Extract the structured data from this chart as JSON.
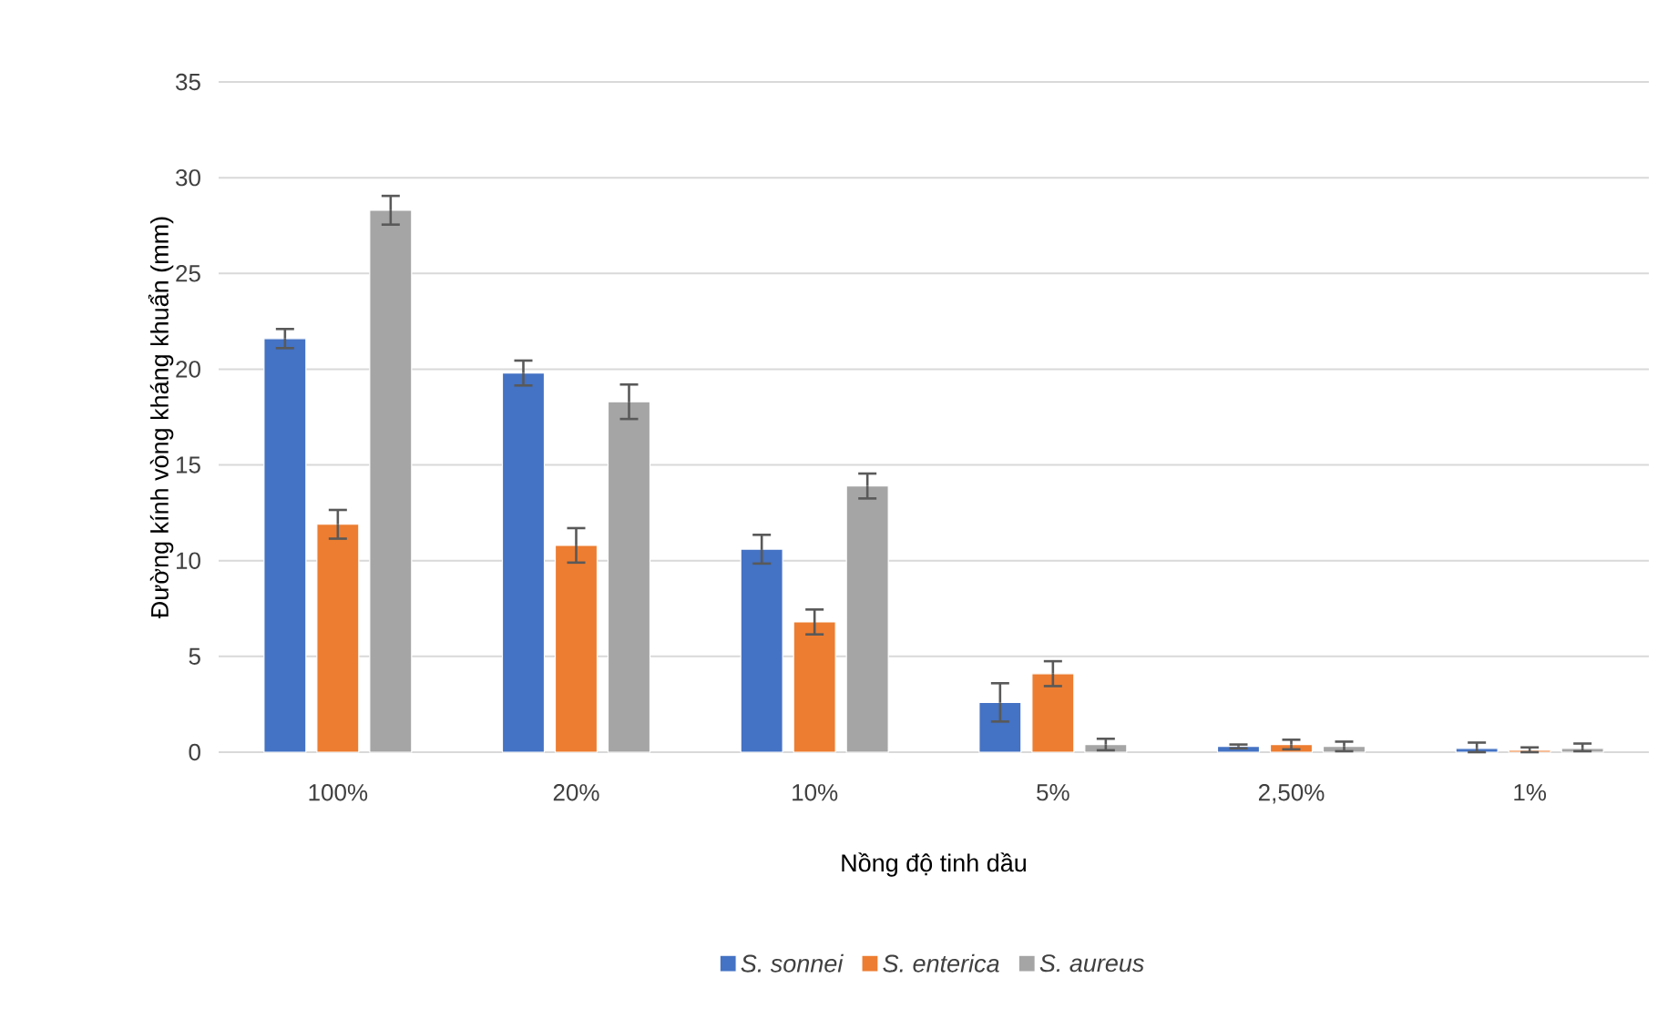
{
  "chart_data": {
    "type": "bar",
    "xlabel": "Nồng độ tinh dầu",
    "ylabel": "Đường kính vòng kháng khuẩn (mm)",
    "categories": [
      "100%",
      "20%",
      "10%",
      "5%",
      "2,50%",
      "1%"
    ],
    "ylim": [
      0,
      35
    ],
    "yticks": [
      0,
      5,
      10,
      15,
      20,
      25,
      30,
      35
    ],
    "grid": "y",
    "legend": "bottom",
    "series": [
      {
        "name": "S. sonnei",
        "color": "#4472c4",
        "values": [
          21.6,
          19.8,
          10.6,
          2.6,
          0.3,
          0.2
        ],
        "errors": [
          0.5,
          0.65,
          0.75,
          1.0,
          0.1,
          [
            0.2,
            0.3
          ]
        ]
      },
      {
        "name": "S. enterica",
        "color": "#ed7d31",
        "values": [
          11.9,
          10.8,
          6.8,
          4.1,
          0.4,
          0.1
        ],
        "errors": [
          0.75,
          0.9,
          0.65,
          0.65,
          0.25,
          [
            0.1,
            0.15
          ]
        ]
      },
      {
        "name": "S. aureus",
        "color": "#a5a5a5",
        "values": [
          28.3,
          18.3,
          13.9,
          0.4,
          0.3,
          0.2
        ],
        "errors": [
          0.75,
          0.9,
          0.65,
          0.3,
          0.25,
          [
            0.15,
            0.25
          ]
        ]
      }
    ]
  }
}
